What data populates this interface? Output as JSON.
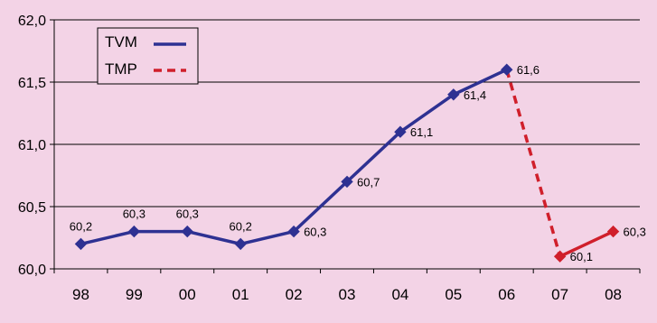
{
  "chart_data": {
    "type": "line",
    "categories": [
      "98",
      "99",
      "00",
      "01",
      "02",
      "03",
      "04",
      "05",
      "06",
      "07",
      "08"
    ],
    "y_tick_labels": [
      "60,0",
      "60,5",
      "61,0",
      "61,5",
      "62,0"
    ],
    "ylim": [
      60.0,
      62.0
    ],
    "grid": true,
    "legend_position": "top-left",
    "series": [
      {
        "name": "TVM",
        "color": "#2e3192",
        "line_style": "solid",
        "x": [
          "98",
          "99",
          "00",
          "01",
          "02",
          "03",
          "04",
          "05",
          "06"
        ],
        "values": [
          60.2,
          60.3,
          60.3,
          60.2,
          60.3,
          60.7,
          61.1,
          61.4,
          61.6
        ],
        "labels": [
          "60,2",
          "60,3",
          "60,3",
          "60,2",
          "60,3",
          "60,7",
          "61,1",
          "61,4",
          "61,6"
        ]
      },
      {
        "name": "TMP",
        "color": "#d01f2b",
        "line_style": "dashed-then-solid",
        "x": [
          "06",
          "07",
          "08"
        ],
        "values": [
          61.6,
          60.1,
          60.3
        ],
        "labels": [
          "",
          "60,1",
          "60,3"
        ]
      }
    ]
  },
  "colors": {
    "background": "#f3d3e6",
    "axis": "#000000",
    "grid": "#000000",
    "marker_tvm": "#2e3192",
    "marker_tmp": "#d01f2b"
  }
}
